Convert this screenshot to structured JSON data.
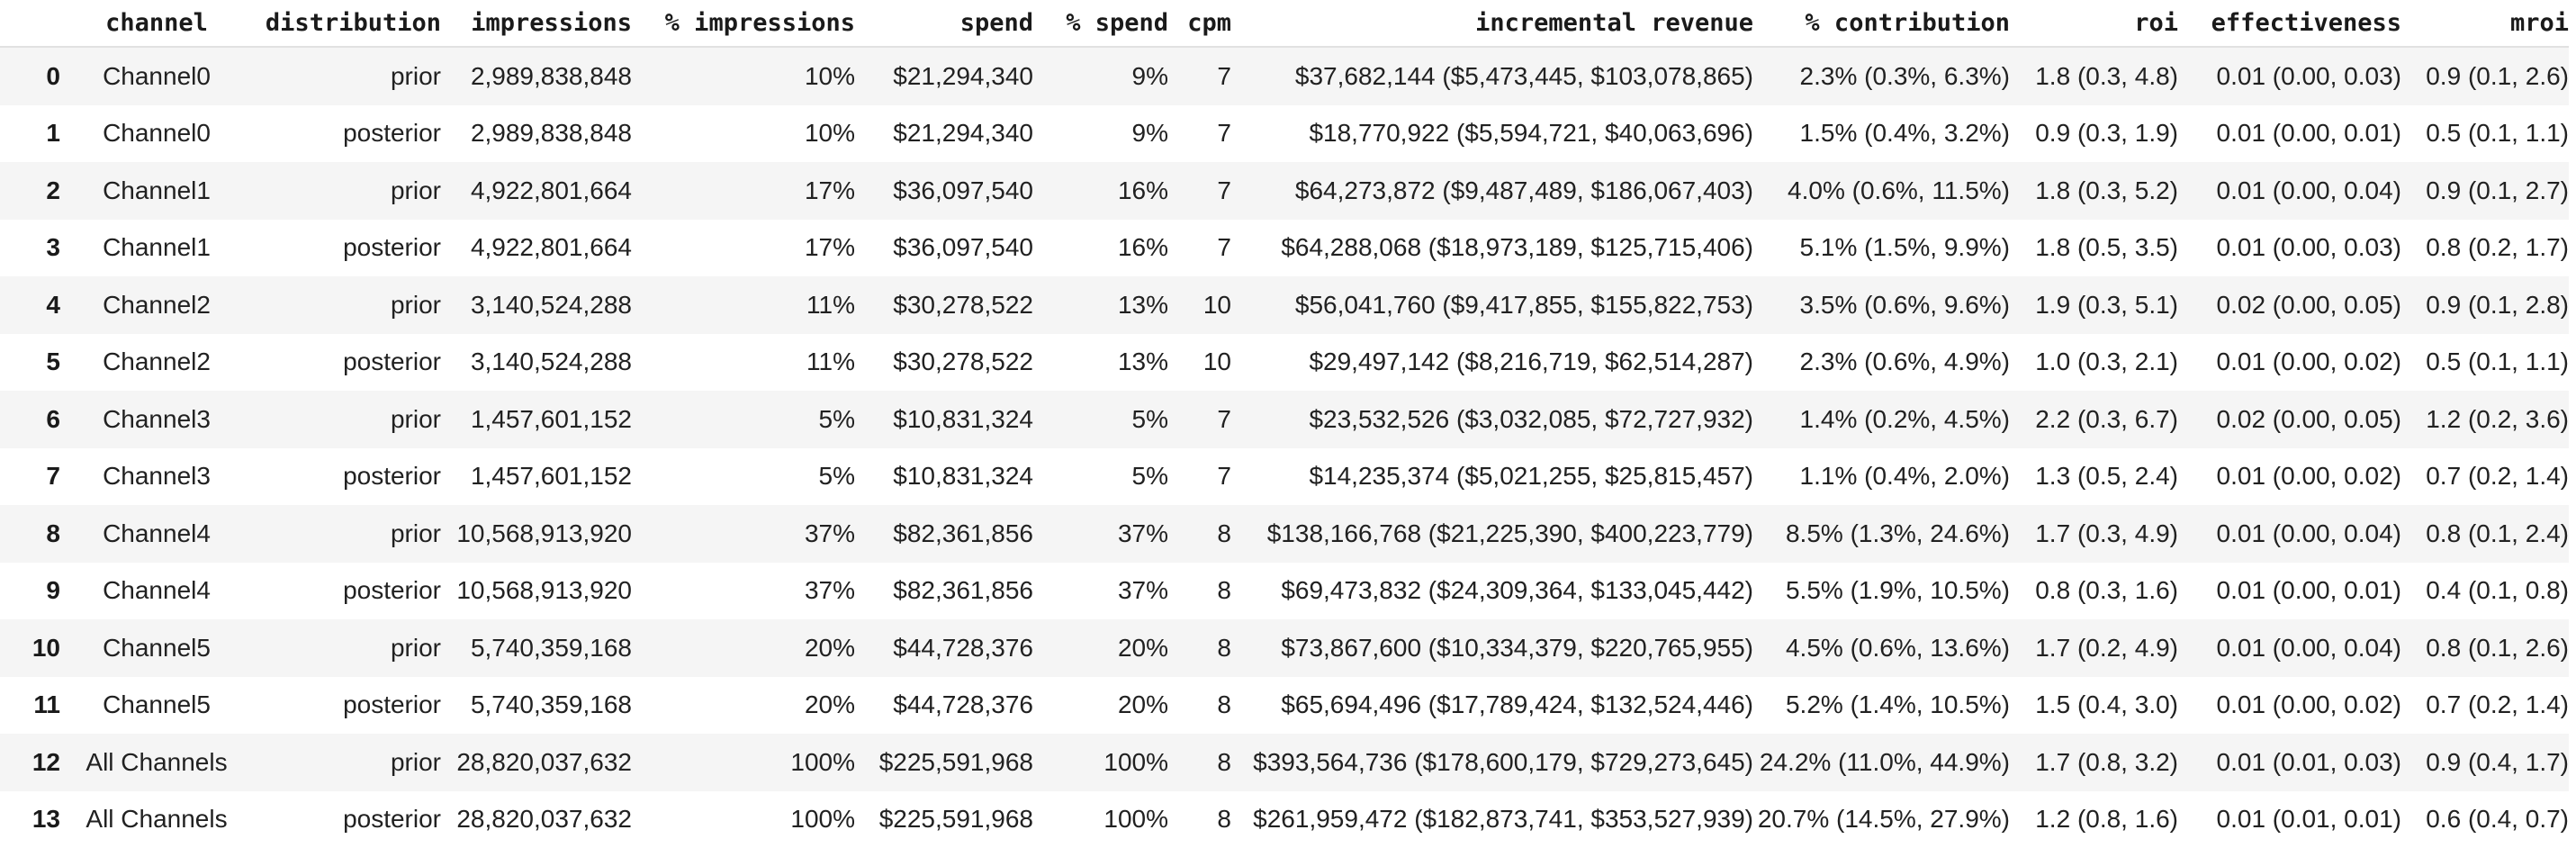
{
  "chart_data": {
    "type": "table",
    "columns": [
      "",
      "channel",
      "distribution",
      "impressions",
      "% impressions",
      "spend",
      "% spend",
      "cpm",
      "incremental revenue",
      "% contribution",
      "roi",
      "effectiveness",
      "mroi"
    ],
    "column_keys": [
      "index",
      "channel",
      "distribution",
      "impressions",
      "pct_impressions",
      "spend",
      "pct_spend",
      "cpm",
      "incremental_revenue",
      "pct_contribution",
      "roi",
      "effectiveness",
      "mroi"
    ],
    "rows": [
      [
        "0",
        "Channel0",
        "prior",
        "2,989,838,848",
        "10%",
        "$21,294,340",
        "9%",
        "7",
        "$37,682,144 ($5,473,445, $103,078,865)",
        "2.3% (0.3%, 6.3%)",
        "1.8 (0.3, 4.8)",
        "0.01 (0.00, 0.03)",
        "0.9 (0.1, 2.6)"
      ],
      [
        "1",
        "Channel0",
        "posterior",
        "2,989,838,848",
        "10%",
        "$21,294,340",
        "9%",
        "7",
        "$18,770,922 ($5,594,721, $40,063,696)",
        "1.5% (0.4%, 3.2%)",
        "0.9 (0.3, 1.9)",
        "0.01 (0.00, 0.01)",
        "0.5 (0.1, 1.1)"
      ],
      [
        "2",
        "Channel1",
        "prior",
        "4,922,801,664",
        "17%",
        "$36,097,540",
        "16%",
        "7",
        "$64,273,872 ($9,487,489, $186,067,403)",
        "4.0% (0.6%, 11.5%)",
        "1.8 (0.3, 5.2)",
        "0.01 (0.00, 0.04)",
        "0.9 (0.1, 2.7)"
      ],
      [
        "3",
        "Channel1",
        "posterior",
        "4,922,801,664",
        "17%",
        "$36,097,540",
        "16%",
        "7",
        "$64,288,068 ($18,973,189, $125,715,406)",
        "5.1% (1.5%, 9.9%)",
        "1.8 (0.5, 3.5)",
        "0.01 (0.00, 0.03)",
        "0.8 (0.2, 1.7)"
      ],
      [
        "4",
        "Channel2",
        "prior",
        "3,140,524,288",
        "11%",
        "$30,278,522",
        "13%",
        "10",
        "$56,041,760 ($9,417,855, $155,822,753)",
        "3.5% (0.6%, 9.6%)",
        "1.9 (0.3, 5.1)",
        "0.02 (0.00, 0.05)",
        "0.9 (0.1, 2.8)"
      ],
      [
        "5",
        "Channel2",
        "posterior",
        "3,140,524,288",
        "11%",
        "$30,278,522",
        "13%",
        "10",
        "$29,497,142 ($8,216,719, $62,514,287)",
        "2.3% (0.6%, 4.9%)",
        "1.0 (0.3, 2.1)",
        "0.01 (0.00, 0.02)",
        "0.5 (0.1, 1.1)"
      ],
      [
        "6",
        "Channel3",
        "prior",
        "1,457,601,152",
        "5%",
        "$10,831,324",
        "5%",
        "7",
        "$23,532,526 ($3,032,085, $72,727,932)",
        "1.4% (0.2%, 4.5%)",
        "2.2 (0.3, 6.7)",
        "0.02 (0.00, 0.05)",
        "1.2 (0.2, 3.6)"
      ],
      [
        "7",
        "Channel3",
        "posterior",
        "1,457,601,152",
        "5%",
        "$10,831,324",
        "5%",
        "7",
        "$14,235,374 ($5,021,255, $25,815,457)",
        "1.1% (0.4%, 2.0%)",
        "1.3 (0.5, 2.4)",
        "0.01 (0.00, 0.02)",
        "0.7 (0.2, 1.4)"
      ],
      [
        "8",
        "Channel4",
        "prior",
        "10,568,913,920",
        "37%",
        "$82,361,856",
        "37%",
        "8",
        "$138,166,768 ($21,225,390, $400,223,779)",
        "8.5% (1.3%, 24.6%)",
        "1.7 (0.3, 4.9)",
        "0.01 (0.00, 0.04)",
        "0.8 (0.1, 2.4)"
      ],
      [
        "9",
        "Channel4",
        "posterior",
        "10,568,913,920",
        "37%",
        "$82,361,856",
        "37%",
        "8",
        "$69,473,832 ($24,309,364, $133,045,442)",
        "5.5% (1.9%, 10.5%)",
        "0.8 (0.3, 1.6)",
        "0.01 (0.00, 0.01)",
        "0.4 (0.1, 0.8)"
      ],
      [
        "10",
        "Channel5",
        "prior",
        "5,740,359,168",
        "20%",
        "$44,728,376",
        "20%",
        "8",
        "$73,867,600 ($10,334,379, $220,765,955)",
        "4.5% (0.6%, 13.6%)",
        "1.7 (0.2, 4.9)",
        "0.01 (0.00, 0.04)",
        "0.8 (0.1, 2.6)"
      ],
      [
        "11",
        "Channel5",
        "posterior",
        "5,740,359,168",
        "20%",
        "$44,728,376",
        "20%",
        "8",
        "$65,694,496 ($17,789,424, $132,524,446)",
        "5.2% (1.4%, 10.5%)",
        "1.5 (0.4, 3.0)",
        "0.01 (0.00, 0.02)",
        "0.7 (0.2, 1.4)"
      ],
      [
        "12",
        "All Channels",
        "prior",
        "28,820,037,632",
        "100%",
        "$225,591,968",
        "100%",
        "8",
        "$393,564,736 ($178,600,179, $729,273,645)",
        "24.2% (11.0%, 44.9%)",
        "1.7 (0.8, 3.2)",
        "0.01 (0.01, 0.03)",
        "0.9 (0.4, 1.7)"
      ],
      [
        "13",
        "All Channels",
        "posterior",
        "28,820,037,632",
        "100%",
        "$225,591,968",
        "100%",
        "8",
        "$261,959,472 ($182,873,741, $353,527,939)",
        "20.7% (14.5%, 27.9%)",
        "1.2 (0.8, 1.6)",
        "0.01 (0.01, 0.01)",
        "0.6 (0.4, 0.7)"
      ]
    ],
    "layout": {
      "stripe_even_index_rows": true,
      "grid": false,
      "legend": "none"
    }
  },
  "colors": {
    "row_stripe": "#f5f5f5",
    "header_border": "#e1e1e1",
    "text": "#212121",
    "header_text": "#1a1a1a",
    "background": "#ffffff"
  }
}
